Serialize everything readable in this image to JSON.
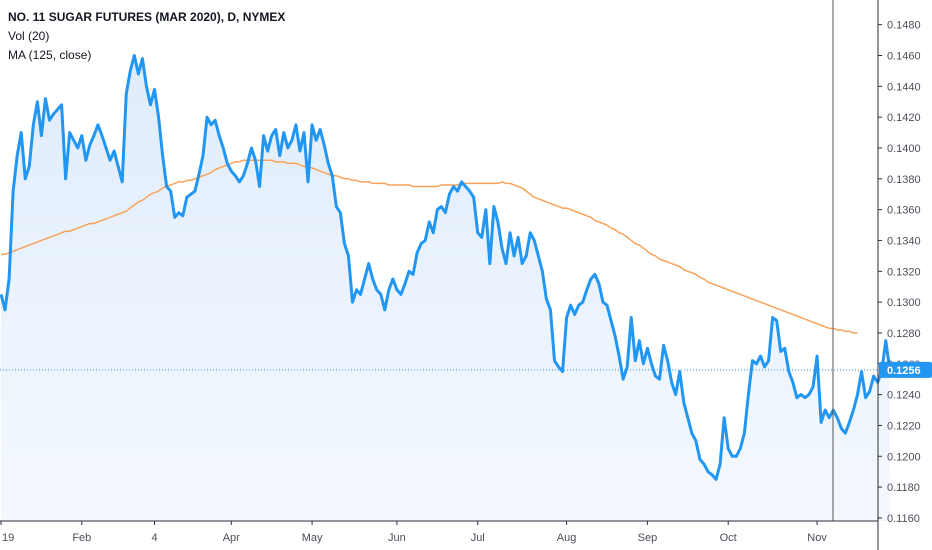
{
  "legend": {
    "title": "NO. 11 SUGAR FUTURES (MAR 2020), D, NYMEX",
    "line2": "Vol (20)",
    "line3": "MA (125, close)"
  },
  "last_price_label": "0.1256",
  "colors": {
    "price": "#2196f3",
    "ma": "#f7a35c",
    "area": "#e9f2fc",
    "last_price_badge": "#2196f3",
    "crosshair": "#555555"
  },
  "chart_data": {
    "type": "line",
    "ylim": [
      0.1158,
      0.1496
    ],
    "ytick_values": [
      0.116,
      0.118,
      0.12,
      0.122,
      0.124,
      0.126,
      0.128,
      0.13,
      0.132,
      0.134,
      0.136,
      0.138,
      0.14,
      0.142,
      0.144,
      0.146,
      0.148
    ],
    "ytick_labels": [
      "0.1160",
      "0.1180",
      "0.1200",
      "0.1220",
      "0.1240",
      "0.1260",
      "0.1280",
      "0.1300",
      "0.1320",
      "0.1340",
      "0.1360",
      "0.1380",
      "0.1400",
      "0.1420",
      "0.1440",
      "0.1460",
      "0.1480"
    ],
    "x_labels": [
      "19",
      "Feb",
      "4",
      "Apr",
      "May",
      "Jun",
      "Jul",
      "Aug",
      "Sep",
      "Oct",
      "Nov"
    ],
    "x_label_index": [
      0,
      20,
      38,
      57,
      77,
      98,
      118,
      140,
      160,
      180,
      202
    ],
    "last_price": 0.1256,
    "series": [
      {
        "values": [
          0.1305,
          0.1295,
          0.1315,
          0.1372,
          0.1395,
          0.141,
          0.138,
          0.1388,
          0.1415,
          0.143,
          0.1408,
          0.1432,
          0.1418,
          0.1422,
          0.1425,
          0.1428,
          0.138,
          0.141,
          0.1405,
          0.14,
          0.1408,
          0.1392,
          0.1402,
          0.1408,
          0.1415,
          0.1408,
          0.14,
          0.1392,
          0.1398,
          0.1388,
          0.1378,
          0.1435,
          0.145,
          0.146,
          0.1448,
          0.1458,
          0.144,
          0.1428,
          0.1438,
          0.142,
          0.1395,
          0.1375,
          0.1372,
          0.1355,
          0.1358,
          0.1356,
          0.1368,
          0.137,
          0.1372,
          0.1383,
          0.1395,
          0.142,
          0.1415,
          0.1418,
          0.1408,
          0.14,
          0.139,
          0.1385,
          0.1382,
          0.1378,
          0.1382,
          0.139,
          0.14,
          0.1392,
          0.1375,
          0.1408,
          0.1398,
          0.1408,
          0.1412,
          0.1395,
          0.141,
          0.14,
          0.1405,
          0.1415,
          0.1398,
          0.141,
          0.1378,
          0.1415,
          0.1405,
          0.1412,
          0.1402,
          0.139,
          0.1382,
          0.1362,
          0.1358,
          0.1338,
          0.133,
          0.13,
          0.1308,
          0.1305,
          0.1315,
          0.1325,
          0.1315,
          0.1308,
          0.1305,
          0.1295,
          0.1308,
          0.1315,
          0.1308,
          0.1305,
          0.1312,
          0.132,
          0.1318,
          0.1332,
          0.1338,
          0.134,
          0.1352,
          0.1345,
          0.136,
          0.1362,
          0.1358,
          0.137,
          0.1375,
          0.1372,
          0.1378,
          0.1375,
          0.1372,
          0.1368,
          0.1345,
          0.1342,
          0.136,
          0.1325,
          0.1362,
          0.1352,
          0.1335,
          0.1325,
          0.1345,
          0.133,
          0.1342,
          0.1325,
          0.133,
          0.1345,
          0.134,
          0.133,
          0.132,
          0.1302,
          0.1295,
          0.1262,
          0.1258,
          0.1255,
          0.129,
          0.1298,
          0.1292,
          0.1298,
          0.13,
          0.1308,
          0.1315,
          0.1318,
          0.1312,
          0.13,
          0.1298,
          0.1288,
          0.1278,
          0.1265,
          0.125,
          0.1258,
          0.129,
          0.1262,
          0.1275,
          0.126,
          0.127,
          0.126,
          0.1252,
          0.125,
          0.1272,
          0.1262,
          0.1248,
          0.124,
          0.1255,
          0.1235,
          0.1225,
          0.1215,
          0.121,
          0.1198,
          0.1195,
          0.119,
          0.1188,
          0.1185,
          0.1195,
          0.1225,
          0.1205,
          0.12,
          0.12,
          0.1205,
          0.1215,
          0.124,
          0.1262,
          0.126,
          0.1265,
          0.1258,
          0.1262,
          0.129,
          0.1288,
          0.1268,
          0.127,
          0.1255,
          0.1248,
          0.1238,
          0.124,
          0.1238,
          0.124,
          0.1245,
          0.1265,
          0.1222,
          0.123,
          0.1225,
          0.123,
          0.1225,
          0.1218,
          0.1215,
          0.1222,
          0.123,
          0.124,
          0.1255,
          0.1238,
          0.1242,
          0.1252,
          0.1248,
          0.1255,
          0.1275,
          0.1256
        ]
      },
      {
        "values": [
          0.1331,
          0.1331,
          0.1332,
          0.1333,
          0.1334,
          0.1335,
          0.1336,
          0.1337,
          0.1338,
          0.1339,
          0.134,
          0.1341,
          0.1342,
          0.1343,
          0.1344,
          0.1345,
          0.1346,
          0.1346,
          0.1347,
          0.1348,
          0.1349,
          0.135,
          0.1351,
          0.1351,
          0.1352,
          0.1353,
          0.1354,
          0.1355,
          0.1356,
          0.1357,
          0.1358,
          0.1359,
          0.1361,
          0.1363,
          0.1365,
          0.1366,
          0.1368,
          0.137,
          0.1371,
          0.1372,
          0.1374,
          0.1375,
          0.1376,
          0.1377,
          0.1378,
          0.1378,
          0.1379,
          0.1379,
          0.138,
          0.1381,
          0.1382,
          0.1383,
          0.1384,
          0.1386,
          0.1387,
          0.1388,
          0.1389,
          0.139,
          0.1391,
          0.1391,
          0.1392,
          0.1392,
          0.1392,
          0.1392,
          0.1392,
          0.1392,
          0.1392,
          0.1392,
          0.1391,
          0.1391,
          0.1391,
          0.139,
          0.139,
          0.139,
          0.1389,
          0.1388,
          0.1388,
          0.1387,
          0.1386,
          0.1385,
          0.1384,
          0.1383,
          0.1382,
          0.1382,
          0.1381,
          0.138,
          0.138,
          0.1379,
          0.1379,
          0.1378,
          0.1378,
          0.1378,
          0.1377,
          0.1377,
          0.1377,
          0.1377,
          0.1376,
          0.1376,
          0.1376,
          0.1376,
          0.1376,
          0.1376,
          0.1375,
          0.1375,
          0.1375,
          0.1375,
          0.1375,
          0.1375,
          0.1375,
          0.1376,
          0.1376,
          0.1376,
          0.1376,
          0.1376,
          0.1377,
          0.1377,
          0.1377,
          0.1377,
          0.1377,
          0.1377,
          0.1377,
          0.1377,
          0.1377,
          0.1377,
          0.1378,
          0.1377,
          0.1377,
          0.1376,
          0.1375,
          0.1374,
          0.1372,
          0.137,
          0.1368,
          0.1367,
          0.1366,
          0.1365,
          0.1364,
          0.1363,
          0.1362,
          0.1361,
          0.1361,
          0.136,
          0.1359,
          0.1358,
          0.1357,
          0.1356,
          0.1355,
          0.1353,
          0.1352,
          0.1351,
          0.135,
          0.1348,
          0.1347,
          0.1345,
          0.1344,
          0.1342,
          0.134,
          0.1338,
          0.1337,
          0.1335,
          0.1333,
          0.1331,
          0.133,
          0.1328,
          0.1327,
          0.1326,
          0.1325,
          0.1324,
          0.1323,
          0.1321,
          0.132,
          0.1319,
          0.1318,
          0.1316,
          0.1315,
          0.1313,
          0.1312,
          0.1311,
          0.131,
          0.1309,
          0.1308,
          0.1307,
          0.1306,
          0.1305,
          0.1304,
          0.1303,
          0.1302,
          0.1301,
          0.13,
          0.1299,
          0.1298,
          0.1297,
          0.1296,
          0.1295,
          0.1294,
          0.1293,
          0.1292,
          0.1291,
          0.129,
          0.1289,
          0.1288,
          0.1287,
          0.1286,
          0.1285,
          0.1284,
          0.1283,
          0.1283,
          0.1282,
          0.1282,
          0.1281,
          0.1281,
          0.128,
          0.128
        ]
      }
    ]
  }
}
